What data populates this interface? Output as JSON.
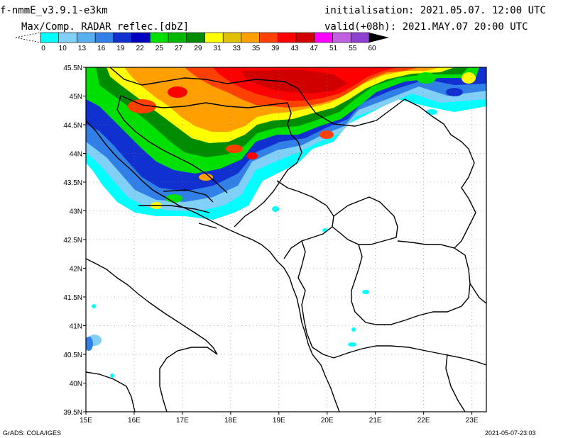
{
  "header": {
    "model": "f-nmmE_v3.9.1-e3km",
    "field": "Max/Comp. RADAR reflec.[dbZ]",
    "init": "initialisation: 2021.05.07. 12:00 UTC",
    "valid": "valid(+08h): 2021.MAY.07 20:00 UTC"
  },
  "colorbar": {
    "labels": [
      "0",
      "10",
      "13",
      "16",
      "19",
      "22",
      "25",
      "27",
      "29",
      "31",
      "33",
      "35",
      "39",
      "43",
      "47",
      "51",
      "55",
      "60"
    ],
    "colors": [
      "#00ffff",
      "#80d0f8",
      "#58b0f0",
      "#3080e8",
      "#1030d0",
      "#0000c0",
      "#00e000",
      "#00b800",
      "#008c00",
      "#ffff00",
      "#e0c000",
      "#ffa000",
      "#ff4000",
      "#ff0000",
      "#d00000",
      "#ff00ff",
      "#c060e0",
      "#9040d0"
    ]
  },
  "map": {
    "lat_ticks": [
      "45.5N",
      "45N",
      "44.5N",
      "44N",
      "43.5N",
      "43N",
      "42.5N",
      "42N",
      "41.5N",
      "41N",
      "40.5N",
      "40N",
      "39.5N"
    ],
    "lon_ticks": [
      "15E",
      "16E",
      "17E",
      "18E",
      "19E",
      "20E",
      "21E",
      "22E",
      "23E"
    ],
    "lat_range": [
      39.5,
      45.5
    ],
    "lon_range": [
      15,
      23.3
    ]
  },
  "footer": {
    "left": "GrADS: COLA/IGES",
    "right": "2021-05-07-23:03"
  }
}
